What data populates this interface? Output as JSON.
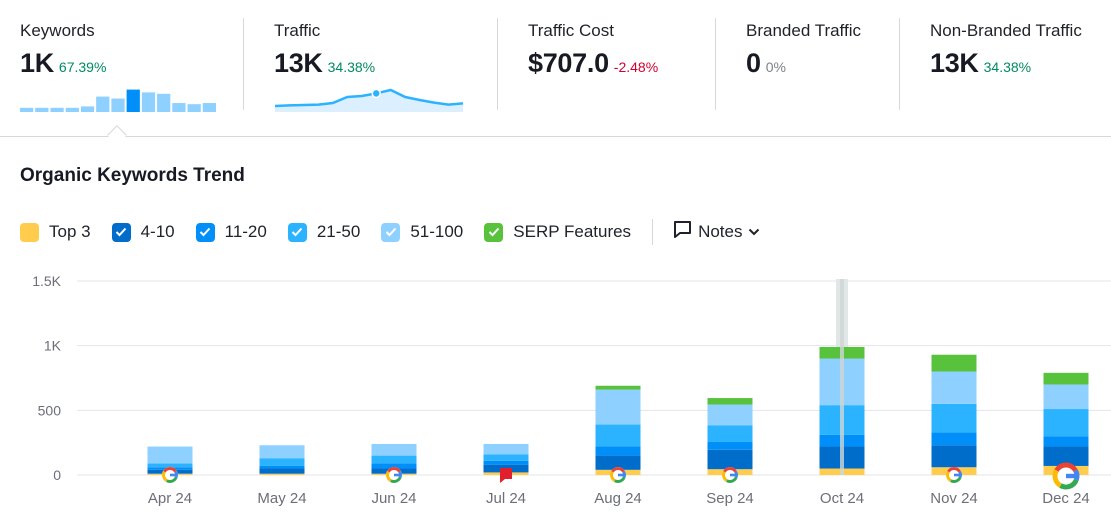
{
  "metrics": [
    {
      "label": "Keywords",
      "value": "1K",
      "delta": "67.39%",
      "tone": "pos"
    },
    {
      "label": "Traffic",
      "value": "13K",
      "delta": "34.38%",
      "tone": "pos"
    },
    {
      "label": "Traffic Cost",
      "value": "$707.0",
      "delta": "-2.48%",
      "tone": "neg"
    },
    {
      "label": "Branded Traffic",
      "value": "0",
      "delta": "0%",
      "tone": "neu"
    },
    {
      "label": "Non-Branded Traffic",
      "value": "13K",
      "delta": "34.38%",
      "tone": "pos"
    }
  ],
  "keywords_sparkline": [
    0.15,
    0.15,
    0.15,
    0.15,
    0.2,
    0.55,
    0.48,
    0.8,
    0.7,
    0.65,
    0.32,
    0.28,
    0.32
  ],
  "keywords_sparkline_highlight": 7,
  "traffic_sparkline": [
    0.15,
    0.18,
    0.2,
    0.22,
    0.3,
    0.6,
    0.65,
    0.78,
    0.95,
    0.6,
    0.45,
    0.32,
    0.22,
    0.28
  ],
  "traffic_sparkline_marker": 7,
  "section_title": "Organic Keywords Trend",
  "legend": [
    {
      "label": "Top 3",
      "color": "#ffcc4d"
    },
    {
      "label": "4-10",
      "color": "#006dca"
    },
    {
      "label": "11-20",
      "color": "#008ff8"
    },
    {
      "label": "21-50",
      "color": "#2bb3ff"
    },
    {
      "label": "51-100",
      "color": "#8ed0ff"
    },
    {
      "label": "SERP Features",
      "color": "#59c23d"
    }
  ],
  "notes_label": "Notes",
  "chart_data": {
    "type": "bar",
    "stacked": true,
    "categories": [
      "Apr 24",
      "May 24",
      "Jun 24",
      "Jul 24",
      "Aug 24",
      "Sep 24",
      "Oct 24",
      "Nov 24",
      "Dec 24"
    ],
    "series": [
      {
        "name": "Top 3",
        "color": "#ffcc4d",
        "values": [
          10,
          10,
          10,
          20,
          40,
          45,
          50,
          60,
          70
        ]
      },
      {
        "name": "4-10",
        "color": "#006dca",
        "values": [
          30,
          40,
          40,
          60,
          110,
          150,
          170,
          170,
          150
        ]
      },
      {
        "name": "11-20",
        "color": "#008ff8",
        "values": [
          20,
          20,
          40,
          30,
          70,
          60,
          90,
          100,
          80
        ]
      },
      {
        "name": "21-50",
        "color": "#2bb3ff",
        "values": [
          30,
          60,
          60,
          50,
          170,
          130,
          230,
          220,
          210
        ]
      },
      {
        "name": "51-100",
        "color": "#8ed0ff",
        "values": [
          130,
          100,
          90,
          80,
          270,
          160,
          360,
          250,
          190
        ]
      },
      {
        "name": "SERP Features",
        "color": "#59c23d",
        "values": [
          0,
          0,
          0,
          0,
          30,
          50,
          90,
          130,
          90
        ]
      }
    ],
    "y_ticks": [
      "0",
      "500",
      "1K",
      "1.5K"
    ],
    "ylim": [
      0,
      1500
    ],
    "grid": true,
    "highlight_category": "Oct 24",
    "markers": [
      {
        "category": "Apr 24",
        "icon": "google-icon"
      },
      {
        "category": "May 24",
        "icon": "none"
      },
      {
        "category": "Jun 24",
        "icon": "google-icon"
      },
      {
        "category": "Jul 24",
        "icon": "flag-icon"
      },
      {
        "category": "Aug 24",
        "icon": "google-icon"
      },
      {
        "category": "Sep 24",
        "icon": "google-icon"
      },
      {
        "category": "Oct 24",
        "icon": "none"
      },
      {
        "category": "Nov 24",
        "icon": "google-icon"
      },
      {
        "category": "Dec 24",
        "icon": "google-icon-large"
      }
    ]
  }
}
